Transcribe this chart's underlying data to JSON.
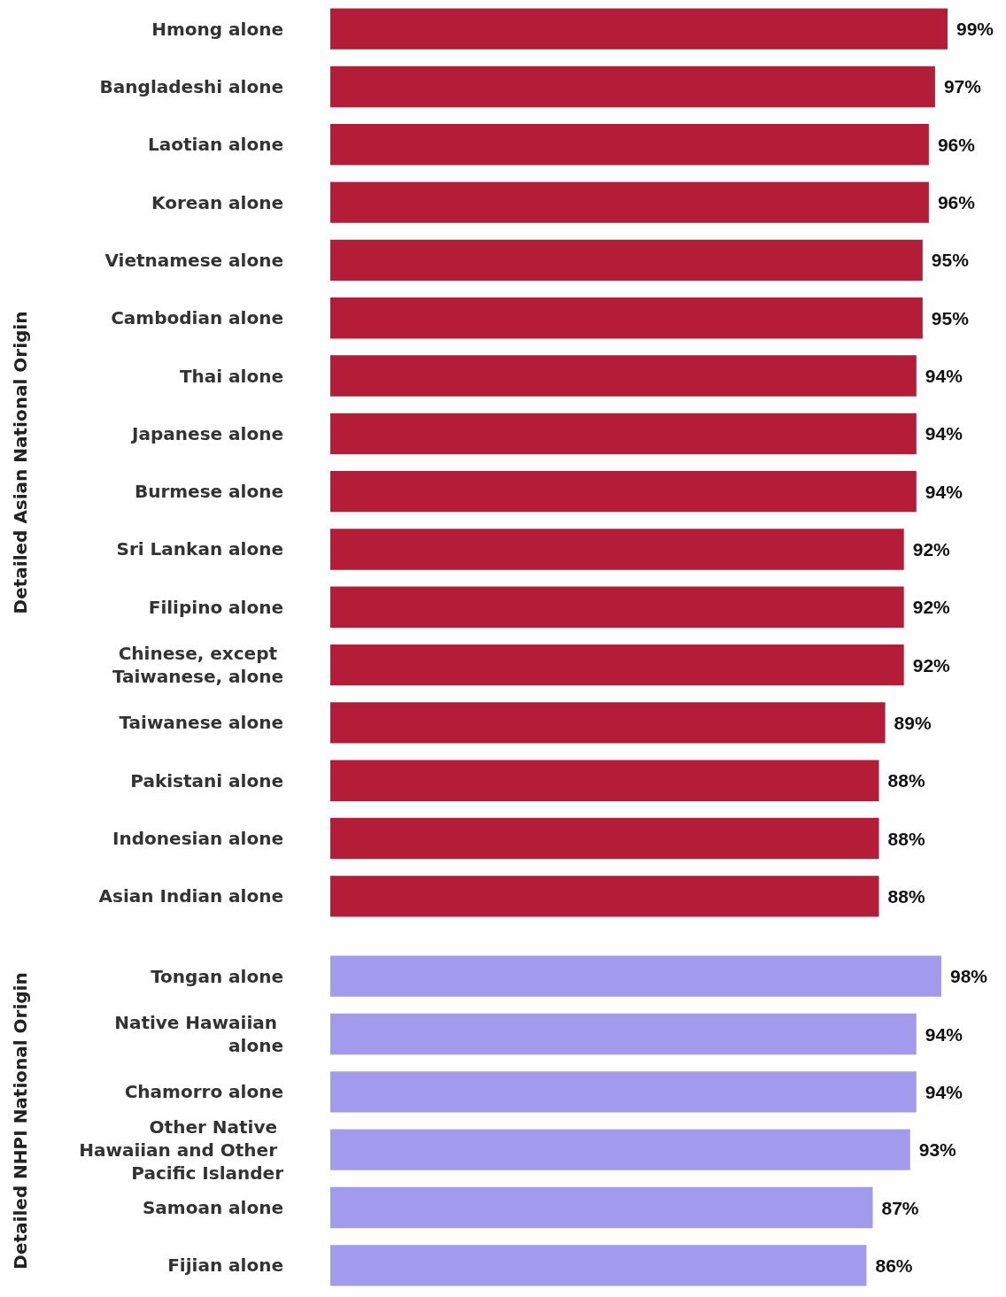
{
  "chart_data": [
    {
      "type": "bar",
      "orientation": "horizontal",
      "ylabel": "Detailed Asian National Origin",
      "tick_labels": "y",
      "color": "#b51c38",
      "categories": [
        "Hmong alone",
        "Bangladeshi alone",
        "Laotian alone",
        "Korean alone",
        "Vietnamese alone",
        "Cambodian alone",
        "Thai alone",
        "Japanese alone",
        "Burmese alone",
        "Sri Lankan alone",
        "Filipino alone",
        "Chinese, except Taiwanese, alone",
        "Taiwanese alone",
        "Pakistani alone",
        "Indonesian alone",
        "Asian Indian alone"
      ],
      "values": [
        99,
        97,
        96,
        96,
        95,
        95,
        94,
        94,
        94,
        92,
        92,
        92,
        89,
        88,
        88,
        88
      ],
      "value_labels": [
        "99%",
        "97%",
        "96%",
        "96%",
        "95%",
        "95%",
        "94%",
        "94%",
        "94%",
        "92%",
        "92%",
        "92%",
        "89%",
        "88%",
        "88%",
        "88%"
      ]
    },
    {
      "type": "bar",
      "orientation": "horizontal",
      "ylabel": "Detailed NHPI National Origin",
      "tick_labels": "y",
      "color": "#a29aec",
      "categories": [
        "Tongan alone",
        "Native Hawaiian alone",
        "Chamorro alone",
        "Other Native Hawaiian and Other Pacific Islander",
        "Samoan alone",
        "Fijian alone"
      ],
      "values": [
        98,
        94,
        94,
        93,
        87,
        86
      ],
      "value_labels": [
        "98%",
        "94%",
        "94%",
        "93%",
        "87%",
        "86%"
      ]
    }
  ]
}
